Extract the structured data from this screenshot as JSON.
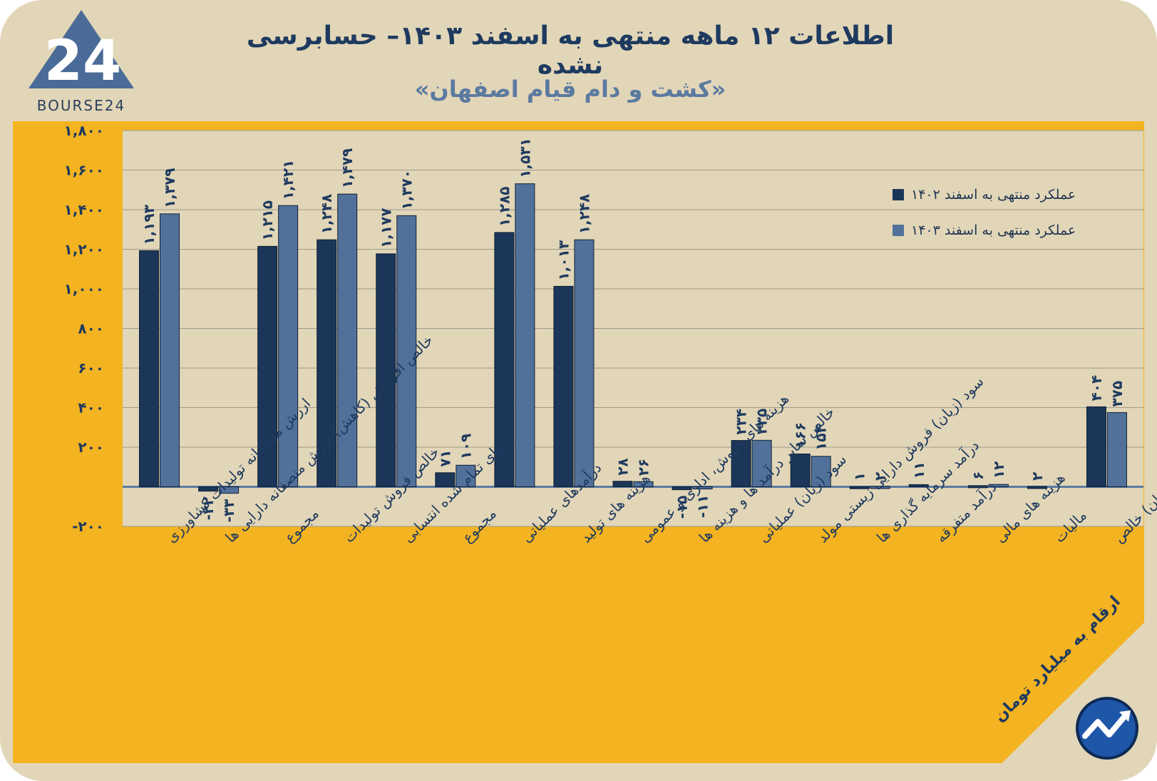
{
  "header": {
    "title": "اطلاعات ۱۲ ماهه منتهی به اسفند ۱۴۰۳– حسابرسی نشده",
    "subtitle": "«کشت و دام قیام اصفهان»"
  },
  "logo": {
    "brand": "24",
    "text": "BOURSE24"
  },
  "note": "ارقام به میلیارد تومان",
  "colors": {
    "background": "#e2d6b8",
    "panel": "#f4b321",
    "plot": "#e2d6b8",
    "series_1402": "#1b3658",
    "series_1403": "#52719a",
    "text": "#1e3a5f"
  },
  "chart_data": {
    "type": "bar",
    "title": "اطلاعات ۱۲ ماهه منتهی به اسفند ۱۴۰۳– حسابرسی نشده",
    "ylim": [
      -200,
      1800
    ],
    "yticks": [
      -200,
      0,
      200,
      400,
      600,
      800,
      1000,
      1200,
      1400,
      1600,
      1800
    ],
    "ytick_labels": [
      "-۲۰۰",
      "",
      "۲۰۰",
      "۴۰۰",
      "۶۰۰",
      "۸۰۰",
      "۱,۰۰۰",
      "۱,۲۰۰",
      "۱,۴۰۰",
      "۱,۶۰۰",
      "۱,۸۰۰"
    ],
    "grid": true,
    "legend_position": "top-right",
    "categories": [
      "ارزش منصفانه تولیدات کشاورزی",
      "خالص افزایش (کاهش) ارزش منصفانه دارایی ها",
      "مجموع",
      "خالص فروش تولیدات",
      "بهای تمام شده انتسابی",
      "مجموع",
      "درآمدهای عملیاتی",
      "هزینه های تولید",
      "هزینه های فروش، اداری و عمومی",
      "خالص سایر درآمد ها و هزینه ها",
      "سود (زیان) عملیاتی",
      "سود (زیان) فروش دارایی زیستی مولد",
      "درآمد سرمایه گذاری ها",
      "درآمد متفرقه",
      "هزینه های مالی",
      "مالیات",
      "سود (زیان) خالص"
    ],
    "series": [
      {
        "name": "عملکرد منتهی به اسفند ۱۴۰۲",
        "values": [
          1193,
          -22,
          1215,
          1248,
          1177,
          71,
          1285,
          1013,
          28,
          -15,
          234,
          166,
          1,
          11,
          6,
          2,
          404
        ],
        "labels": [
          "۱,۱۹۳",
          "-۲۲",
          "۱,۲۱۵",
          "۱,۲۴۸",
          "۱,۱۷۷",
          "۷۱",
          "۱,۲۸۵",
          "۱,۰۱۳",
          "۲۸",
          "-۱۵",
          "۲۳۴",
          "۱۶۶",
          "۱",
          "۱۱",
          "۶",
          "۲",
          "۴۰۴"
        ]
      },
      {
        "name": "عملکرد منتهی به اسفند ۱۴۰۳",
        "values": [
          1379,
          -33,
          1421,
          1479,
          1370,
          109,
          1531,
          1248,
          26,
          -11,
          235,
          154,
          2,
          null,
          12,
          null,
          375
        ],
        "labels": [
          "۱,۳۷۹",
          "-۳۳",
          "۱,۴۲۱",
          "۱,۴۷۹",
          "۱,۳۷۰",
          "۱۰۹",
          "۱,۵۳۱",
          "۱,۲۴۸",
          "۲۶",
          "-۱۱",
          "۲۳۵",
          "۱۵۴",
          "۲",
          "",
          "۱۲",
          "",
          "۳۷۵"
        ]
      }
    ]
  }
}
